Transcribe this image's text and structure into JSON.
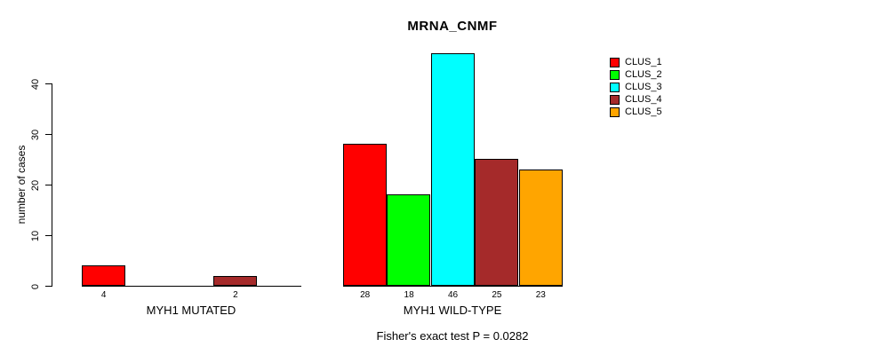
{
  "title": "MRNA_CNMF",
  "footer": "Fisher's exact test P = 0.0282",
  "chart_data": {
    "type": "bar",
    "title": "MRNA_CNMF",
    "xlabel": "",
    "ylabel": "number of cases",
    "ylim": [
      0,
      46
    ],
    "yticks": [
      0,
      10,
      20,
      30,
      40
    ],
    "grid": false,
    "legend_position": "top-right",
    "categories": [
      "MYH1 MUTATED",
      "MYH1 WILD-TYPE"
    ],
    "series": [
      {
        "name": "CLUS_1",
        "color": "#FF0000",
        "values": [
          4,
          28
        ]
      },
      {
        "name": "CLUS_2",
        "color": "#00FF00",
        "values": [
          0,
          18
        ]
      },
      {
        "name": "CLUS_3",
        "color": "#00FFFF",
        "values": [
          0,
          46
        ]
      },
      {
        "name": "CLUS_4",
        "color": "#A52A2A",
        "values": [
          2,
          25
        ]
      },
      {
        "name": "CLUS_5",
        "color": "#FFA500",
        "values": [
          0,
          23
        ]
      }
    ],
    "bar_labels": [
      [
        "4",
        "",
        "",
        "2",
        ""
      ],
      [
        "28",
        "18",
        "46",
        "25",
        "23"
      ]
    ],
    "annotation": "Fisher's exact test P = 0.0282"
  }
}
